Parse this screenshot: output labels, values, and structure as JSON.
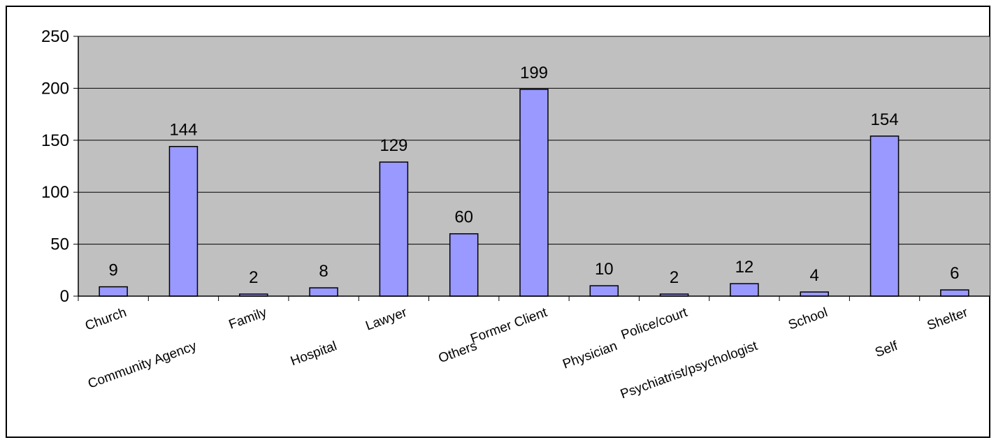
{
  "chart_data": {
    "type": "bar",
    "categories": [
      "Church",
      "Community Agency",
      "Family",
      "Hospital",
      "Lawyer",
      "Others",
      "Former Client",
      "Physician",
      "Police/court",
      "Psychiatrist/psychologist",
      "School",
      "Self",
      "Shelter"
    ],
    "values": [
      9,
      144,
      2,
      8,
      129,
      60,
      199,
      10,
      2,
      12,
      4,
      154,
      6
    ],
    "data_labels": [
      "9",
      "144",
      "2",
      "8",
      "129",
      "60",
      "199",
      "10",
      "2",
      "12",
      "4",
      "154",
      "6"
    ],
    "y_ticks": [
      "0",
      "50",
      "100",
      "150",
      "200",
      "250"
    ],
    "ylim": [
      0,
      250
    ],
    "grid": true,
    "legend": "none",
    "colors": {
      "bar_fill": "#9999ff",
      "bar_stroke": "#000000",
      "plot_background": "#c0c0c0",
      "gridline": "#000000",
      "chart_border": "#000000"
    }
  }
}
